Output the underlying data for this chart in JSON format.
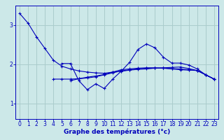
{
  "xlabel": "Graphe des températures (°c)",
  "background_color": "#cce8e8",
  "grid_color": "#aacccc",
  "line_color": "#0000bb",
  "x_ticks": [
    0,
    1,
    2,
    3,
    4,
    5,
    6,
    7,
    8,
    9,
    10,
    11,
    12,
    13,
    14,
    15,
    16,
    17,
    18,
    19,
    20,
    21,
    22,
    23
  ],
  "ylim": [
    0.6,
    3.5
  ],
  "xlim": [
    -0.5,
    23.5
  ],
  "series": [
    [
      3.3,
      3.05,
      2.7,
      2.4,
      2.1,
      1.95,
      1.88,
      1.83,
      1.8,
      1.78,
      1.77,
      1.8,
      1.82,
      1.85,
      1.87,
      1.88,
      1.9,
      1.91,
      1.92,
      1.93,
      1.89,
      1.84,
      1.73,
      1.62
    ],
    [
      null,
      null,
      null,
      null,
      null,
      2.02,
      2.02,
      1.58,
      1.35,
      1.5,
      1.38,
      1.62,
      1.82,
      2.05,
      2.38,
      2.52,
      2.42,
      2.18,
      2.03,
      2.03,
      1.98,
      1.88,
      1.73,
      1.62
    ],
    [
      null,
      null,
      null,
      null,
      null,
      null,
      1.58,
      1.63,
      1.67,
      1.7,
      1.74,
      1.8,
      1.86,
      1.88,
      1.9,
      1.91,
      1.91,
      1.9,
      1.88,
      1.86,
      1.85,
      1.84,
      1.73,
      1.62
    ],
    [
      null,
      null,
      null,
      null,
      1.62,
      1.62,
      1.62,
      1.63,
      1.65,
      1.68,
      1.73,
      1.78,
      1.83,
      1.86,
      1.88,
      1.9,
      1.9,
      1.9,
      1.89,
      1.88,
      1.86,
      1.84,
      1.73,
      1.62
    ]
  ],
  "marker": "+",
  "markersize": 3,
  "linewidth": 0.8,
  "yticks": [
    1,
    2,
    3
  ],
  "tick_fontsize": 5.5,
  "label_fontsize": 6.5
}
